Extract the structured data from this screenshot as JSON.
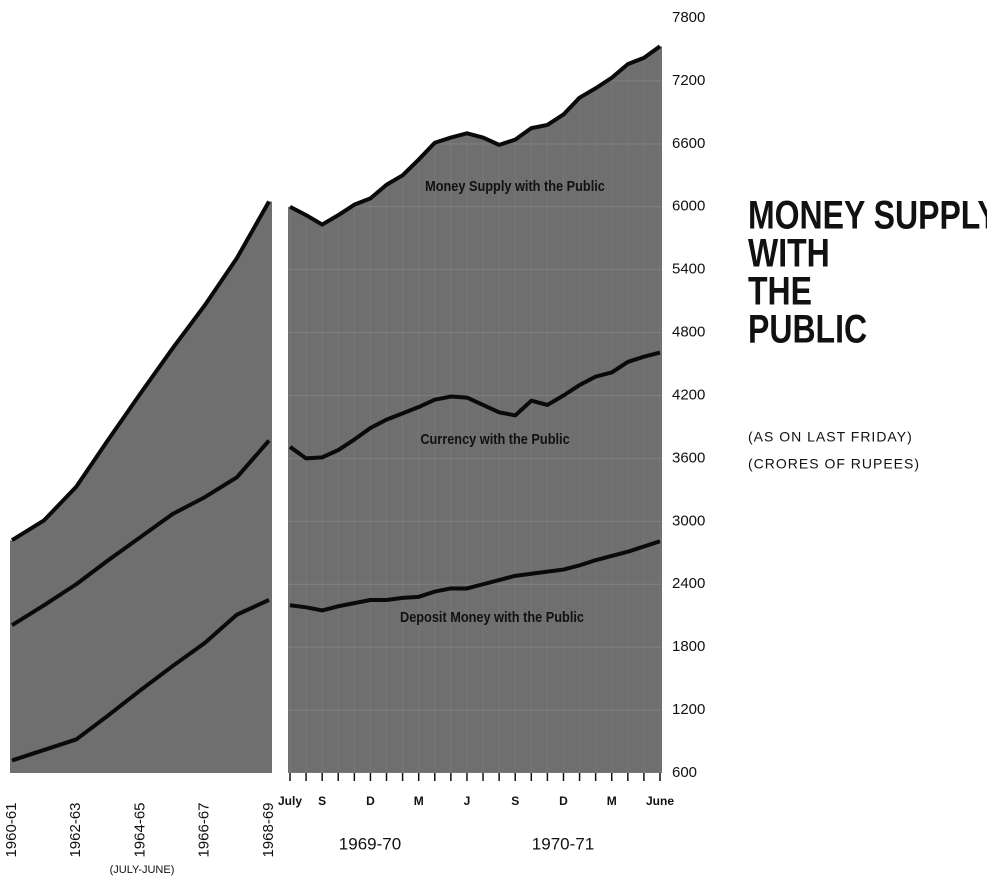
{
  "chart_data": [
    {
      "type": "area",
      "categories": [
        "1960-61",
        null,
        "1962-63",
        null,
        "1964-65",
        null,
        "1966-67",
        null,
        "1968-69"
      ],
      "x_label": "(JULY-JUNE)",
      "ylim": [
        600,
        7800
      ],
      "fill": "#6f6f6f",
      "series": [
        {
          "color": "#0a0a0a",
          "values": [
            2820,
            3010,
            3330,
            3780,
            4220,
            4650,
            5060,
            5510,
            6050
          ]
        },
        {
          "color": "#0a0a0a",
          "values": [
            2010,
            2200,
            2400,
            2630,
            2850,
            3070,
            3230,
            3420,
            3770
          ]
        },
        {
          "color": "#0a0a0a",
          "values": [
            720,
            820,
            920,
            1150,
            1390,
            1620,
            1840,
            2110,
            2250
          ]
        }
      ]
    },
    {
      "type": "area",
      "title": [
        "MONEY SUPPLY",
        "WITH",
        "THE",
        "PUBLIC"
      ],
      "subtitle": [
        "(AS ON LAST FRIDAY)",
        "(CRORES OF RUPEES)"
      ],
      "categories": [
        "July",
        null,
        "S",
        null,
        null,
        "D",
        null,
        null,
        "M",
        null,
        null,
        "J",
        null,
        null,
        "S",
        null,
        null,
        "D",
        null,
        null,
        "M",
        null,
        null,
        "June"
      ],
      "period_labels": [
        "1969-70",
        "1970-71"
      ],
      "ylim": [
        600,
        7800
      ],
      "yticks": [
        600,
        1200,
        1800,
        2400,
        3000,
        3600,
        4200,
        4800,
        5400,
        6000,
        6600,
        7200,
        7800
      ],
      "grid": true,
      "fill": "#6f6f6f",
      "series": [
        {
          "name": "Money Supply with the Public",
          "color": "#0a0a0a",
          "values": [
            6000,
            5920,
            5830,
            5920,
            6020,
            6080,
            6210,
            6300,
            6450,
            6610,
            6660,
            6700,
            6660,
            6590,
            6640,
            6750,
            6780,
            6880,
            7040,
            7130,
            7230,
            7360,
            7420,
            7530
          ]
        },
        {
          "name": "Currency with the Public",
          "color": "#0a0a0a",
          "values": [
            3710,
            3600,
            3610,
            3680,
            3780,
            3890,
            3970,
            4030,
            4090,
            4160,
            4190,
            4180,
            4110,
            4040,
            4010,
            4150,
            4110,
            4200,
            4300,
            4380,
            4420,
            4520,
            4570,
            4610
          ]
        },
        {
          "name": "Deposit Money with the Public",
          "color": "#0a0a0a",
          "values": [
            2200,
            2180,
            2150,
            2190,
            2220,
            2250,
            2250,
            2270,
            2280,
            2330,
            2360,
            2360,
            2400,
            2440,
            2480,
            2500,
            2520,
            2540,
            2580,
            2630,
            2670,
            2710,
            2760,
            2810
          ]
        }
      ]
    }
  ]
}
